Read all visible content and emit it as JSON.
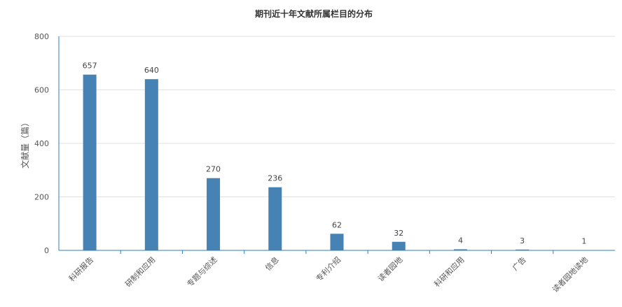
{
  "chart_data": {
    "type": "bar",
    "title": "期刊近十年文献所属栏目的分布",
    "xlabel": "",
    "ylabel": "文献量（篇）",
    "categories": [
      "科研报告",
      "研制和应用",
      "专题与综述",
      "信息",
      "专利介绍",
      "读者园地",
      "科研和应用",
      "广告",
      "读者园地读地"
    ],
    "values": [
      657,
      640,
      270,
      236,
      62,
      32,
      4,
      3,
      1
    ],
    "ylim": [
      0,
      800
    ],
    "yticks": [
      0,
      200,
      400,
      600,
      800
    ],
    "grid": true,
    "bar_color": "#4682b4",
    "axis_color": "#2b7fb8",
    "legend": "none"
  }
}
